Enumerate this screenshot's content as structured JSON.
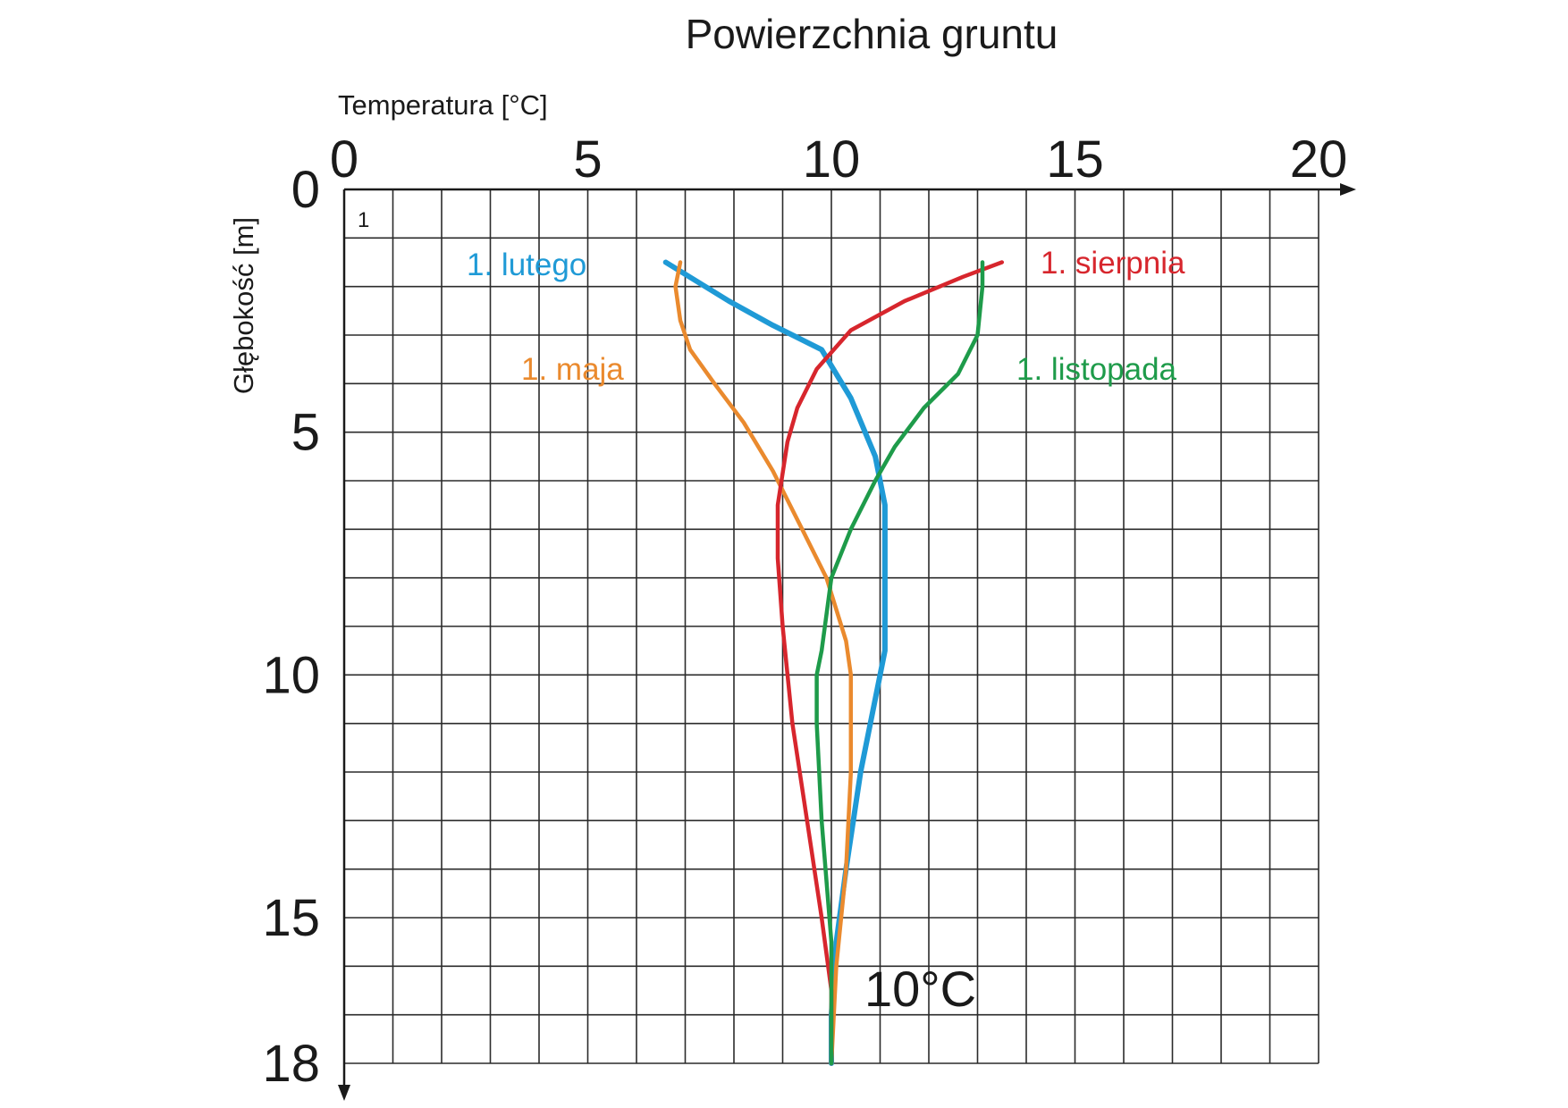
{
  "chart_data": {
    "type": "line",
    "title": "Powierzchnia gruntu",
    "xlabel": "Temperatura [°C]",
    "ylabel": "Głębokość [m]",
    "xlim": [
      0,
      20
    ],
    "ylim": [
      0,
      18
    ],
    "y_inverted": true,
    "x_ticks": [
      "0",
      "5",
      "10",
      "15",
      "20"
    ],
    "y_ticks": [
      "0",
      "5",
      "10",
      "15",
      "18"
    ],
    "grid": true,
    "corner_label": "1",
    "annotation": "10°C",
    "series": [
      {
        "name": "1. lutego",
        "color": "#1f9ad6",
        "x": [
          6.6,
          7.9,
          8.8,
          9.8,
          10.4,
          10.9,
          11.1,
          11.1,
          11.1,
          11.0,
          10.6,
          10.3,
          10.1,
          10.0,
          10.0
        ],
        "y": [
          1.5,
          2.3,
          2.8,
          3.3,
          4.3,
          5.5,
          6.5,
          8.0,
          9.5,
          10.0,
          12.0,
          14.0,
          15.5,
          17.0,
          18.0
        ]
      },
      {
        "name": "1. maja",
        "color": "#ea8a2e",
        "x": [
          6.9,
          6.8,
          6.9,
          7.1,
          7.6,
          8.2,
          8.8,
          9.4,
          9.9,
          10.3,
          10.4,
          10.4,
          10.3,
          10.1,
          10.0
        ],
        "y": [
          1.5,
          2.0,
          2.7,
          3.3,
          4.0,
          4.8,
          5.8,
          7.0,
          8.0,
          9.3,
          10.0,
          12.0,
          14.0,
          16.0,
          18.0
        ]
      },
      {
        "name": "1. sierpnia",
        "color": "#d7262d",
        "x": [
          13.5,
          12.7,
          11.5,
          10.4,
          9.7,
          9.3,
          9.1,
          8.9,
          8.9,
          9.0,
          9.2,
          9.5,
          9.8,
          10.0,
          10.0
        ],
        "y": [
          1.5,
          1.8,
          2.3,
          2.9,
          3.7,
          4.5,
          5.2,
          6.5,
          7.6,
          9.0,
          11.0,
          13.0,
          15.0,
          16.5,
          18.0
        ]
      },
      {
        "name": "1. listopada",
        "color": "#1e9b4a",
        "x": [
          13.1,
          13.1,
          13.0,
          12.6,
          11.9,
          11.3,
          10.9,
          10.4,
          10.0,
          9.8,
          9.7,
          9.7,
          9.8,
          10.0,
          10.0
        ],
        "y": [
          1.5,
          2.0,
          3.0,
          3.8,
          4.5,
          5.3,
          6.0,
          7.0,
          8.0,
          9.5,
          10.0,
          11.0,
          13.0,
          15.5,
          18.0
        ]
      }
    ]
  }
}
